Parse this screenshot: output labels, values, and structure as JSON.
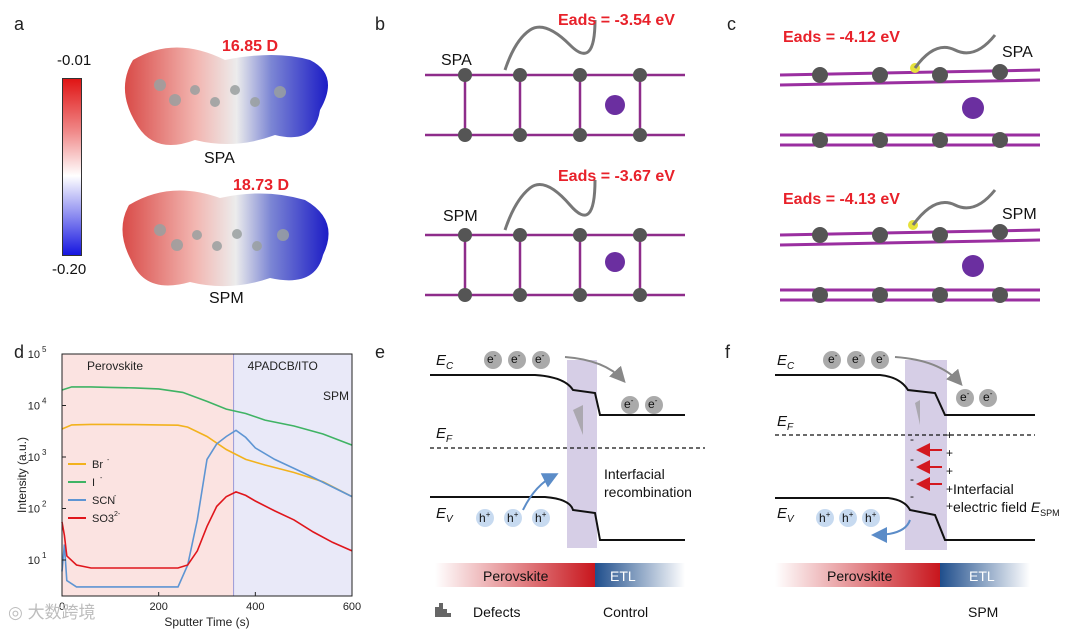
{
  "panels": {
    "a": {
      "label": "a",
      "scale_max": "-0.01",
      "scale_min": "-0.20",
      "spa_name": "SPA",
      "spa_dipole": "16.85 D",
      "spm_name": "SPM",
      "spm_dipole": "18.73 D"
    },
    "b": {
      "label": "b",
      "spa_name": "SPA",
      "spa_eads": "Eads = -3.54 eV",
      "spm_name": "SPM",
      "spm_eads": "Eads = -3.67 eV"
    },
    "c": {
      "label": "c",
      "spa_name": "SPA",
      "spa_eads": "Eads = -4.12 eV",
      "spm_name": "SPM",
      "spm_eads": "Eads = -4.13 eV"
    },
    "d": {
      "label": "d"
    },
    "e": {
      "label": "e",
      "ec": "E",
      "ec_sub": "C",
      "ef": "E",
      "ef_sub": "F",
      "ev": "E",
      "ev_sub": "V",
      "electron": "e",
      "electron_sup": "-",
      "hole": "h",
      "hole_sup": "+",
      "annotation_line1": "Interfacial",
      "annotation_line2": "recombination",
      "bar_left": "Perovskite",
      "bar_right": "ETL",
      "defects_legend": "Defects",
      "caption": "Control"
    },
    "f": {
      "label": "f",
      "ec": "E",
      "ec_sub": "C",
      "ef": "E",
      "ef_sub": "F",
      "ev": "E",
      "ev_sub": "V",
      "electron": "e",
      "electron_sup": "-",
      "hole": "h",
      "hole_sup": "+",
      "annotation_line1": "Interfacial",
      "annotation_line2": "electric field ",
      "annotation_field": "E",
      "annotation_field_sub": "SPM",
      "bar_left": "Perovskite",
      "bar_right": "ETL",
      "caption": "SPM"
    }
  },
  "watermark": "大数跨境",
  "chart_data": {
    "type": "line",
    "title": "",
    "xlabel": "Sputter Time (s)",
    "ylabel": "Intensity (a.u.)",
    "xlim": [
      0,
      600
    ],
    "ylim": [
      2,
      100000
    ],
    "yscale": "log",
    "x_ticks": [
      "0",
      "200",
      "400",
      "600"
    ],
    "y_ticks": [
      "10",
      "10",
      "10",
      "10",
      "10"
    ],
    "y_tick_exponents": [
      "1",
      "2",
      "3",
      "4",
      "5"
    ],
    "regions": [
      {
        "name": "Perovskite",
        "from": 0,
        "to": 355,
        "color": "#fbe3e1"
      },
      {
        "name": "4PADCB/ITO",
        "from": 355,
        "to": 600,
        "color": "#e9e9f8"
      }
    ],
    "region_note": "SPM",
    "legend": [
      "Br",
      "I",
      "SCN",
      "SO3"
    ],
    "legend_sup": [
      "-",
      "-",
      "-",
      "2-"
    ],
    "series": [
      {
        "name": "Br-",
        "color": "#f2b21d",
        "x": [
          0,
          20,
          60,
          100,
          150,
          200,
          240,
          260,
          300,
          340,
          380,
          420,
          480,
          540,
          600
        ],
        "y": [
          3500,
          4200,
          4300,
          4300,
          4250,
          4200,
          4150,
          3800,
          2500,
          1400,
          900,
          700,
          500,
          330,
          170
        ]
      },
      {
        "name": "I-",
        "color": "#3fb364",
        "x": [
          0,
          20,
          60,
          100,
          150,
          200,
          250,
          300,
          340,
          380,
          420,
          480,
          540,
          600
        ],
        "y": [
          20000,
          23000,
          23000,
          22500,
          22000,
          21000,
          18000,
          12000,
          8500,
          7000,
          5200,
          4000,
          2800,
          1700
        ]
      },
      {
        "name": "SCN-",
        "color": "#5e95d3",
        "x": [
          0,
          5,
          10,
          30,
          60,
          100,
          150,
          200,
          240,
          260,
          280,
          300,
          320,
          340,
          360,
          380,
          400,
          440,
          480,
          520,
          560,
          600
        ],
        "y": [
          6,
          20,
          4,
          3,
          3,
          3,
          3,
          3,
          3,
          8,
          60,
          900,
          1800,
          2500,
          3300,
          2400,
          1500,
          900,
          600,
          400,
          260,
          170
        ]
      },
      {
        "name": "SO3-",
        "color": "#e0161c",
        "x": [
          0,
          5,
          10,
          30,
          60,
          100,
          150,
          200,
          240,
          260,
          280,
          300,
          320,
          340,
          360,
          380,
          400,
          440,
          480,
          520,
          560,
          600
        ],
        "y": [
          55,
          30,
          12,
          8,
          7,
          7,
          7,
          7,
          7,
          8,
          15,
          45,
          110,
          170,
          210,
          180,
          140,
          90,
          60,
          35,
          22,
          15
        ]
      }
    ]
  }
}
